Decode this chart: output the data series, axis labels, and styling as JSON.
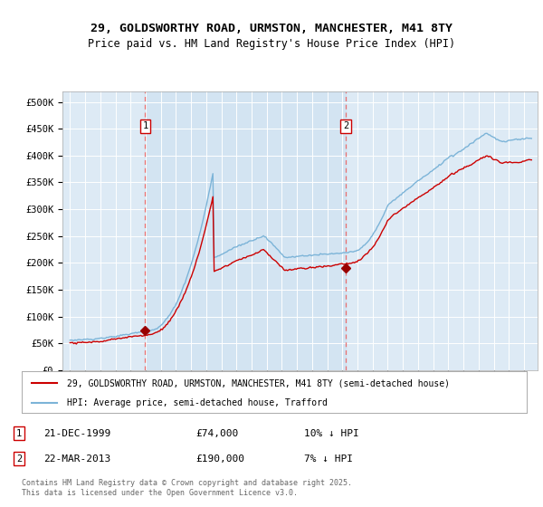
{
  "title_line1": "29, GOLDSWORTHY ROAD, URMSTON, MANCHESTER, M41 8TY",
  "title_line2": "Price paid vs. HM Land Registry's House Price Index (HPI)",
  "legend_line1": "29, GOLDSWORTHY ROAD, URMSTON, MANCHESTER, M41 8TY (semi-detached house)",
  "legend_line2": "HPI: Average price, semi-detached house, Trafford",
  "footer": "Contains HM Land Registry data © Crown copyright and database right 2025.\nThis data is licensed under the Open Government Licence v3.0.",
  "annotation1_date": "21-DEC-1999",
  "annotation1_price": "£74,000",
  "annotation1_hpi": "10% ↓ HPI",
  "annotation2_date": "22-MAR-2013",
  "annotation2_price": "£190,000",
  "annotation2_hpi": "7% ↓ HPI",
  "purchase1_year": 1999.97,
  "purchase1_value": 74000,
  "purchase2_year": 2013.22,
  "purchase2_value": 190000,
  "hpi_color": "#7cb4d8",
  "price_color": "#cc0000",
  "marker_color": "#990000",
  "dashed_line_color": "#e87070",
  "background_color": "#ffffff",
  "plot_bg_color": "#ddeaf5",
  "grid_color": "#ffffff",
  "ylim": [
    0,
    520000
  ],
  "yticks": [
    0,
    50000,
    100000,
    150000,
    200000,
    250000,
    300000,
    350000,
    400000,
    450000,
    500000
  ],
  "ytick_labels": [
    "£0",
    "£50K",
    "£100K",
    "£150K",
    "£200K",
    "£250K",
    "£300K",
    "£350K",
    "£400K",
    "£450K",
    "£500K"
  ]
}
